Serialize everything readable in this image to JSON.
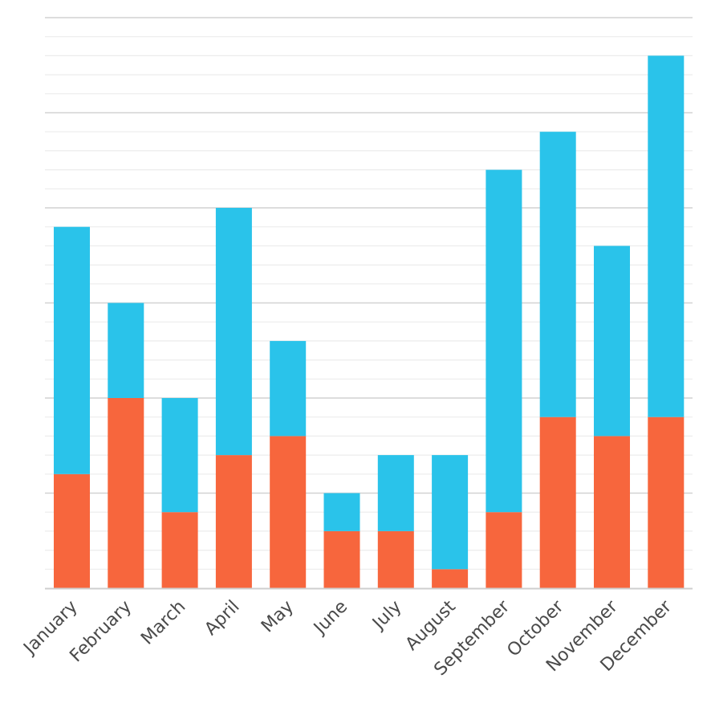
{
  "chart_data": {
    "type": "bar",
    "stacked": true,
    "categories": [
      "January",
      "February",
      "March",
      "April",
      "May",
      "June",
      "July",
      "August",
      "September",
      "October",
      "November",
      "December"
    ],
    "series": [
      {
        "values": [
          6,
          10,
          4,
          7,
          8,
          3,
          3,
          1,
          4,
          9,
          8,
          9
        ],
        "color": "#f7663d"
      },
      {
        "values": [
          13,
          5,
          6,
          13,
          5,
          2,
          4,
          6,
          18,
          15,
          10,
          19
        ],
        "color": "#2ac3ea"
      }
    ],
    "ylim": [
      0,
      30
    ],
    "grid": true,
    "gridline_step": 1,
    "major_gridline_step": 5,
    "y_tick_labels_visible": false,
    "legend": "none",
    "colors": {
      "minor_grid": "#ececec",
      "major_grid": "#d2d2d2",
      "axis": "#cfcfcf",
      "label": "#4a4a4a",
      "background": "#ffffff"
    }
  }
}
